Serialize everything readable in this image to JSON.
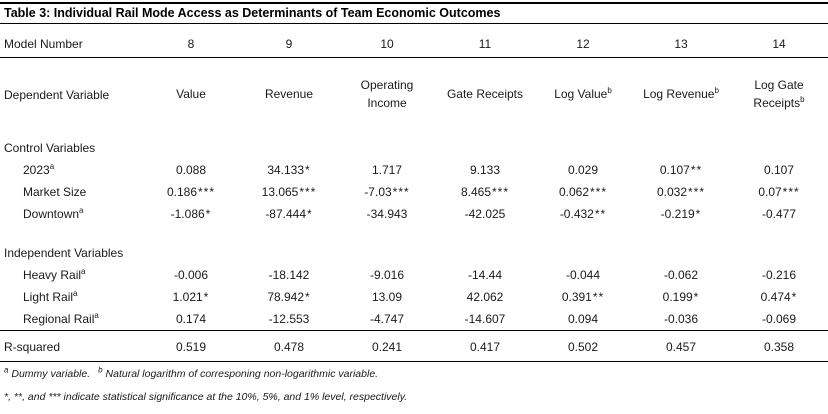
{
  "table": {
    "title": "Table 3: Individual Rail Mode Access as Determinants of Team Economic Outcomes",
    "model_row": {
      "label": "Model Number",
      "values": [
        "8",
        "9",
        "10",
        "11",
        "12",
        "13",
        "14"
      ]
    },
    "header": {
      "label": "Dependent Variable",
      "columns": [
        {
          "t": "Value",
          "s": ""
        },
        {
          "t": "Revenue",
          "s": ""
        },
        {
          "t": "Operating Income",
          "s": ""
        },
        {
          "t": "Gate Receipts",
          "s": ""
        },
        {
          "t": "Log Value",
          "s": "b"
        },
        {
          "t": "Log Revenue",
          "s": "b"
        },
        {
          "t": "Log Gate Receipts",
          "s": "b"
        }
      ]
    },
    "sections": [
      {
        "heading": "Control Variables",
        "rows": [
          {
            "label": "2023",
            "sup": "a",
            "cells": [
              "0.088",
              "34.133*",
              "1.717",
              "9.133",
              "0.029",
              "0.107**",
              "0.107"
            ]
          },
          {
            "label": "Market Size",
            "sup": "",
            "cells": [
              "0.186***",
              "13.065***",
              "-7.03***",
              "8.465***",
              "0.062***",
              "0.032***",
              "0.07***"
            ]
          },
          {
            "label": "Downtown",
            "sup": "a",
            "cells": [
              "-1.086*",
              "-87.444*",
              "-34.943",
              "-42.025",
              "-0.432**",
              "-0.219*",
              "-0.477"
            ]
          }
        ]
      },
      {
        "heading": "Independent Variables",
        "rows": [
          {
            "label": "Heavy Rail",
            "sup": "a",
            "cells": [
              "-0.006",
              "-18.142",
              "-9.016",
              "-14.44",
              "-0.044",
              "-0.062",
              "-0.216"
            ]
          },
          {
            "label": "Light Rail",
            "sup": "a",
            "cells": [
              "1.021*",
              "78.942*",
              "13.09",
              "42.062",
              "0.391**",
              "0.199*",
              "0.474*"
            ]
          },
          {
            "label": "Regional Rail",
            "sup": "a",
            "cells": [
              "0.174",
              "-12.553",
              "-4.747",
              "-14.607",
              "0.094",
              "-0.036",
              "-0.069"
            ]
          }
        ]
      }
    ],
    "rsquared": {
      "label": "R-squared",
      "cells": [
        "0.519",
        "0.478",
        "0.241",
        "0.417",
        "0.502",
        "0.457",
        "0.358"
      ]
    },
    "footnotes": {
      "fn1": [
        {
          "marker": "a",
          "text": "Dummy variable."
        },
        {
          "marker": "b",
          "text": "Natural logarithm of corresponing non-logarithmic variable."
        }
      ],
      "fn2": "*, **, and *** indicate statistical significance at the 10%, 5%, and 1% level, respectively."
    }
  }
}
